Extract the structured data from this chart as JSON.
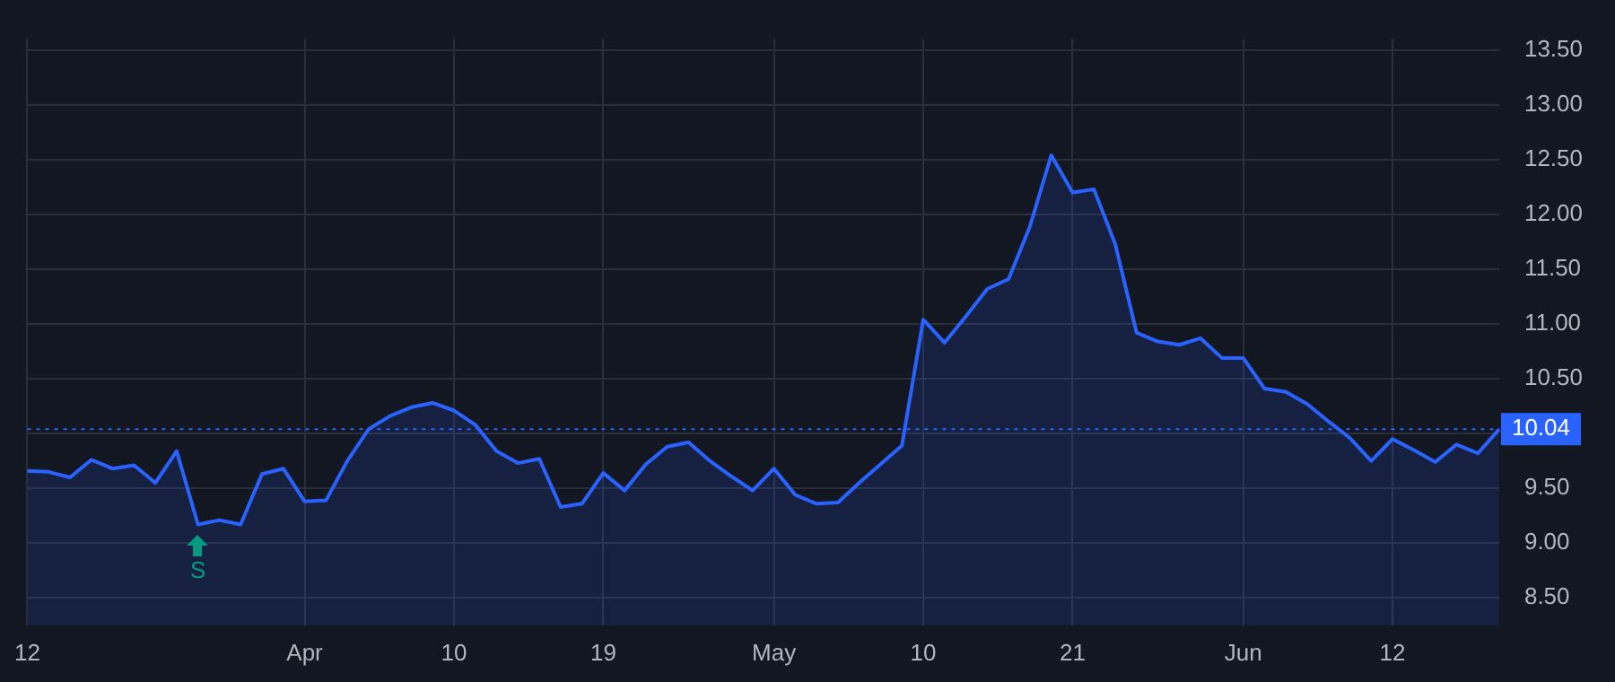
{
  "chart_data": {
    "type": "area",
    "categories": [
      "12",
      null,
      null,
      null,
      null,
      null,
      null,
      null,
      null,
      null,
      null,
      null,
      null,
      "Apr",
      null,
      null,
      null,
      null,
      null,
      null,
      "10",
      null,
      null,
      null,
      null,
      null,
      null,
      "19",
      null,
      null,
      null,
      null,
      null,
      null,
      null,
      "May",
      null,
      null,
      null,
      null,
      null,
      null,
      "10",
      null,
      null,
      null,
      null,
      null,
      null,
      "21",
      null,
      null,
      null,
      null,
      null,
      null,
      null,
      "Jun",
      null,
      null,
      null,
      null,
      null,
      null,
      "12",
      null,
      null,
      null,
      null,
      null
    ],
    "series": [
      {
        "color": "#2962ff",
        "values": [
          9.66,
          9.65,
          9.6,
          9.76,
          9.68,
          9.71,
          9.55,
          9.84,
          9.17,
          9.21,
          9.17,
          9.63,
          9.68,
          9.38,
          9.39,
          9.75,
          10.04,
          10.16,
          10.24,
          10.28,
          10.21,
          10.08,
          9.84,
          9.73,
          9.77,
          9.33,
          9.36,
          9.64,
          9.48,
          9.72,
          9.88,
          9.92,
          9.75,
          9.61,
          9.48,
          9.68,
          9.44,
          9.36,
          9.37,
          9.55,
          9.72,
          9.89,
          11.04,
          10.83,
          11.07,
          11.32,
          11.41,
          11.89,
          12.54,
          12.2,
          12.23,
          11.73,
          10.92,
          10.84,
          10.81,
          10.87,
          10.69,
          10.69,
          10.41,
          10.38,
          10.27,
          10.11,
          9.96,
          9.75,
          9.95,
          9.85,
          9.74,
          9.9,
          9.82,
          10.04
        ]
      }
    ],
    "ylim": [
      8.25,
      13.6
    ],
    "yticks": [
      {
        "value": 8.5,
        "label": "8.50"
      },
      {
        "value": 9,
        "label": "9.00"
      },
      {
        "value": 9.5,
        "label": "9.50"
      },
      {
        "value": 10,
        "label": null
      },
      {
        "value": 10.5,
        "label": "10.50"
      },
      {
        "value": 11,
        "label": "11.00"
      },
      {
        "value": 11.5,
        "label": "11.50"
      },
      {
        "value": 12,
        "label": "12.00"
      },
      {
        "value": 12.5,
        "label": "12.50"
      },
      {
        "value": 13,
        "label": "13.00"
      },
      {
        "value": 13.5,
        "label": "13.50"
      }
    ],
    "ref_lines": [
      {
        "axis": "y",
        "value": 10.04,
        "label": "10.04",
        "color": "#2962ff",
        "line_style": "dotted"
      }
    ],
    "annotations": [
      {
        "text": "S",
        "y": 9.17
      }
    ],
    "grid": true
  }
}
